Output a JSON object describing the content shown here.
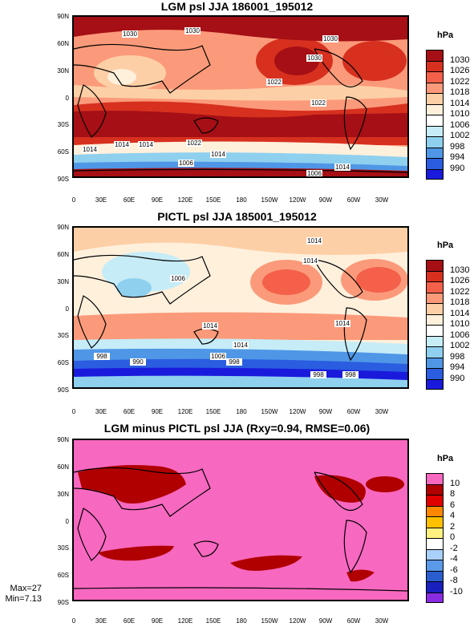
{
  "panels": [
    {
      "title": "LGM psl JJA 186001_195012",
      "unit": "hPa",
      "levels": [
        "1030",
        "1026",
        "1022",
        "1018",
        "1014",
        "1010",
        "1006",
        "1002",
        "998",
        "994",
        "990"
      ],
      "colors": [
        "#a50f15",
        "#d7301f",
        "#f4604a",
        "#fb9a7a",
        "#fdcfa6",
        "#fff0dc",
        "#ffffff",
        "#c6ecf7",
        "#8fd0ef",
        "#4f97e6",
        "#2a5de0",
        "#1a1adc"
      ],
      "contour_labels": [
        "1030",
        "1030",
        "1030",
        "1022",
        "1030",
        "1022",
        "1014",
        "1014",
        "1022",
        "1014",
        "1006",
        "1006",
        "1014",
        "1014"
      ]
    },
    {
      "title": "PICTL psl JJA 185001_195012",
      "unit": "hPa",
      "levels": [
        "1030",
        "1026",
        "1022",
        "1018",
        "1014",
        "1010",
        "1006",
        "1002",
        "998",
        "994",
        "990"
      ],
      "colors": [
        "#a50f15",
        "#d7301f",
        "#f4604a",
        "#fb9a7a",
        "#fdcfa6",
        "#fff0dc",
        "#ffffff",
        "#c6ecf7",
        "#8fd0ef",
        "#4f97e6",
        "#2a5de0",
        "#1a1adc"
      ],
      "contour_labels": [
        "1014",
        "1014",
        "1006",
        "1014",
        "1014",
        "1014",
        "998",
        "990",
        "1006",
        "998",
        "998",
        "998"
      ]
    },
    {
      "title": "LGM minus PICTL psl JJA (Rxy=0.94, RMSE=0.06)",
      "unit": "hPa",
      "levels": [
        "10",
        "8",
        "6",
        "4",
        "2",
        "0",
        "-2",
        "-4",
        "-6",
        "-8",
        "-10"
      ],
      "colors": [
        "#f768c0",
        "#b00000",
        "#e00000",
        "#ff8800",
        "#ffc000",
        "#fff080",
        "#ffffff",
        "#a8d0f8",
        "#5a9ae8",
        "#2a5dd0",
        "#1a20c0",
        "#8a2be2"
      ],
      "stats": {
        "max": "Max=27",
        "min": "Min=7.13"
      }
    }
  ],
  "lat_ticks": [
    "90N",
    "60N",
    "30N",
    "0",
    "30S",
    "60S",
    "90S"
  ],
  "lon_ticks": [
    "0",
    "30E",
    "60E",
    "90E",
    "120E",
    "150E",
    "180",
    "150W",
    "120W",
    "90W",
    "60W",
    "30W"
  ]
}
